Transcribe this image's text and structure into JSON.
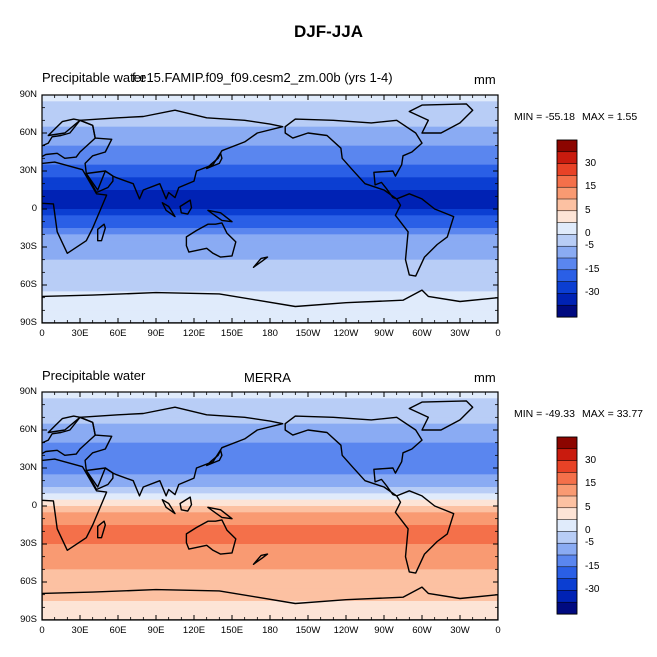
{
  "title": "DJF-JJA",
  "panels": [
    {
      "left_label": "Precipitable water",
      "center_label": "f.e15.FAMIP.f09_f09.cesm2_zm.00b (yrs 1-4)",
      "right_label": "mm",
      "min_label": "MIN = -55.18",
      "max_label": "MAX =   1.55"
    },
    {
      "left_label": "Precipitable water",
      "center_label": "MERRA",
      "right_label": "mm",
      "min_label": "MIN = -49.33",
      "max_label": "MAX = 33.77"
    }
  ],
  "colors": {
    "levels": [
      "#000a80",
      "#0022b4",
      "#0b3ed2",
      "#2a5fe6",
      "#5a86ef",
      "#8aabf3",
      "#b8cdf6",
      "#e0ebfb",
      "#fde4d6",
      "#fcc1a2",
      "#f99a72",
      "#f4704a",
      "#e84226",
      "#c91b0e",
      "#8c0500"
    ],
    "map_background": "#ffffff"
  },
  "chart_data": [
    {
      "type": "heatmap",
      "title": "DJF-JJA",
      "subtitle": "f.e15.FAMIP.f09_f09.cesm2_zm.00b (yrs 1-4)",
      "variable": "Precipitable water",
      "units": "mm",
      "x_ticks": [
        "0",
        "30E",
        "60E",
        "90E",
        "120E",
        "150E",
        "180",
        "150W",
        "120W",
        "90W",
        "60W",
        "30W",
        "0"
      ],
      "y_ticks": [
        "90N",
        "60N",
        "30N",
        "0",
        "30S",
        "60S",
        "90S"
      ],
      "xlim": [
        0,
        360
      ],
      "ylim": [
        -90,
        90
      ],
      "colorbar_ticks": [
        "30",
        "15",
        "5",
        "0",
        "-5",
        "-15",
        "-30"
      ],
      "min": -55.18,
      "max": 1.55,
      "zonal_profile": {
        "lat": [
          90,
          75,
          60,
          45,
          30,
          20,
          10,
          0,
          -10,
          -20,
          -30,
          -40,
          -50,
          -60,
          -70,
          -80,
          -90
        ],
        "value": [
          -4,
          -8,
          -12,
          -16,
          -22,
          -28,
          -34,
          -30,
          -22,
          -16,
          -12,
          -10,
          -8,
          -6,
          -3,
          -1,
          -1
        ]
      }
    },
    {
      "type": "heatmap",
      "title": "DJF-JJA",
      "subtitle": "MERRA",
      "variable": "Precipitable water",
      "units": "mm",
      "x_ticks": [
        "0",
        "30E",
        "60E",
        "90E",
        "120E",
        "150E",
        "180",
        "150W",
        "120W",
        "90W",
        "60W",
        "30W",
        "0"
      ],
      "y_ticks": [
        "90N",
        "60N",
        "30N",
        "0",
        "30S",
        "60S",
        "90S"
      ],
      "xlim": [
        0,
        360
      ],
      "ylim": [
        -90,
        90
      ],
      "colorbar_ticks": [
        "30",
        "15",
        "5",
        "0",
        "-5",
        "-15",
        "-30"
      ],
      "min": -49.33,
      "max": 33.77,
      "zonal_profile": {
        "lat": [
          90,
          75,
          60,
          45,
          30,
          20,
          10,
          0,
          -10,
          -20,
          -30,
          -40,
          -50,
          -60,
          -70,
          -80,
          -90
        ],
        "value": [
          -4,
          -8,
          -12,
          -16,
          -18,
          -14,
          -7,
          3,
          9,
          12,
          10,
          7,
          5,
          4,
          3,
          2,
          2
        ]
      }
    }
  ]
}
